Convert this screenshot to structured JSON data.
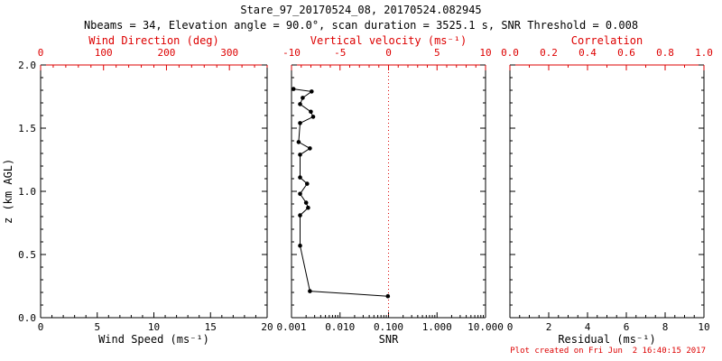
{
  "title": "Stare_97_20170524_08, 20170524.082945",
  "subtitle": "Nbeams = 34, Elevation angle = 90.0°, scan duration = 3525.1 s, SNR Threshold = 0.008",
  "footer": "Plot created on Fri Jun  2 16:40:15 2017",
  "colors": {
    "primary_axis": "#000000",
    "secondary_axis": "#dd0000",
    "data": "#000000",
    "zero_line": "#dd0000",
    "background": "#ffffff"
  },
  "chart_data": {
    "type": "line",
    "y_axis": {
      "label": "z (km AGL)",
      "range": [
        0,
        2
      ],
      "ticks": [
        0,
        0.5,
        1,
        1.5,
        2
      ],
      "tick_labels": [
        "0.0",
        "0.5",
        "1.0",
        "1.5",
        "2.0"
      ],
      "minor_step": 0.1
    },
    "panels": [
      {
        "id": "wind-speed",
        "type": "line",
        "bottom_axis": {
          "title": "Wind Speed (ms⁻¹)",
          "scale": "linear",
          "range": [
            0,
            20
          ],
          "ticks": [
            0,
            5,
            10,
            15,
            20
          ],
          "tick_labels": [
            "0",
            "5",
            "10",
            "15",
            "20"
          ],
          "minor_step": 1
        },
        "top_axis": {
          "title": "Wind Direction (deg)",
          "scale": "linear",
          "range": [
            0,
            360
          ],
          "ticks": [
            0,
            100,
            200,
            300
          ],
          "tick_labels": [
            "0",
            "100",
            "200",
            "300"
          ],
          "minor_step": 20
        },
        "series": []
      },
      {
        "id": "snr",
        "type": "line",
        "bottom_axis": {
          "title": "SNR",
          "scale": "log",
          "range": [
            0.001,
            10
          ],
          "ticks": [
            0.001,
            0.01,
            0.1,
            1,
            10
          ],
          "tick_labels": [
            "0.001",
            "0.010",
            "0.100",
            "1.000",
            "10.000"
          ]
        },
        "top_axis": {
          "title": "Vertical velocity (ms⁻¹)",
          "scale": "linear",
          "range": [
            -10,
            10
          ],
          "ticks": [
            -10,
            -5,
            0,
            5,
            10
          ],
          "tick_labels": [
            "-10",
            "-5",
            "0",
            "5",
            "10"
          ],
          "minor_step": 1
        },
        "reference_line": {
          "axis": "top",
          "value": 0,
          "style": "dotted"
        },
        "series": [
          {
            "name": "SNR profile",
            "x_axis": "bottom",
            "points": [
              [
                0.0011,
                1.81
              ],
              [
                0.0026,
                1.79
              ],
              [
                0.0017,
                1.74
              ],
              [
                0.0015,
                1.69
              ],
              [
                0.0025,
                1.63
              ],
              [
                0.0028,
                1.59
              ],
              [
                0.0015,
                1.54
              ],
              [
                0.0014,
                1.39
              ],
              [
                0.0024,
                1.34
              ],
              [
                0.0015,
                1.29
              ],
              [
                0.0015,
                1.11
              ],
              [
                0.0021,
                1.06
              ],
              [
                0.0015,
                0.98
              ],
              [
                0.002,
                0.91
              ],
              [
                0.0022,
                0.87
              ],
              [
                0.0015,
                0.81
              ],
              [
                0.0015,
                0.57
              ],
              [
                0.0024,
                0.21
              ],
              [
                0.097,
                0.17
              ]
            ]
          }
        ]
      },
      {
        "id": "residual",
        "type": "line",
        "bottom_axis": {
          "title": "Residual (ms⁻¹)",
          "scale": "linear",
          "range": [
            0,
            10
          ],
          "ticks": [
            0,
            2,
            4,
            6,
            8,
            10
          ],
          "tick_labels": [
            "0",
            "2",
            "4",
            "6",
            "8",
            "10"
          ],
          "minor_step": 0.5
        },
        "top_axis": {
          "title": "Correlation",
          "scale": "linear",
          "range": [
            0,
            1
          ],
          "ticks": [
            0,
            0.2,
            0.4,
            0.6,
            0.8,
            1
          ],
          "tick_labels": [
            "0.0",
            "0.2",
            "0.4",
            "0.6",
            "0.8",
            "1.0"
          ],
          "minor_step": 0.1
        },
        "series": []
      }
    ]
  }
}
